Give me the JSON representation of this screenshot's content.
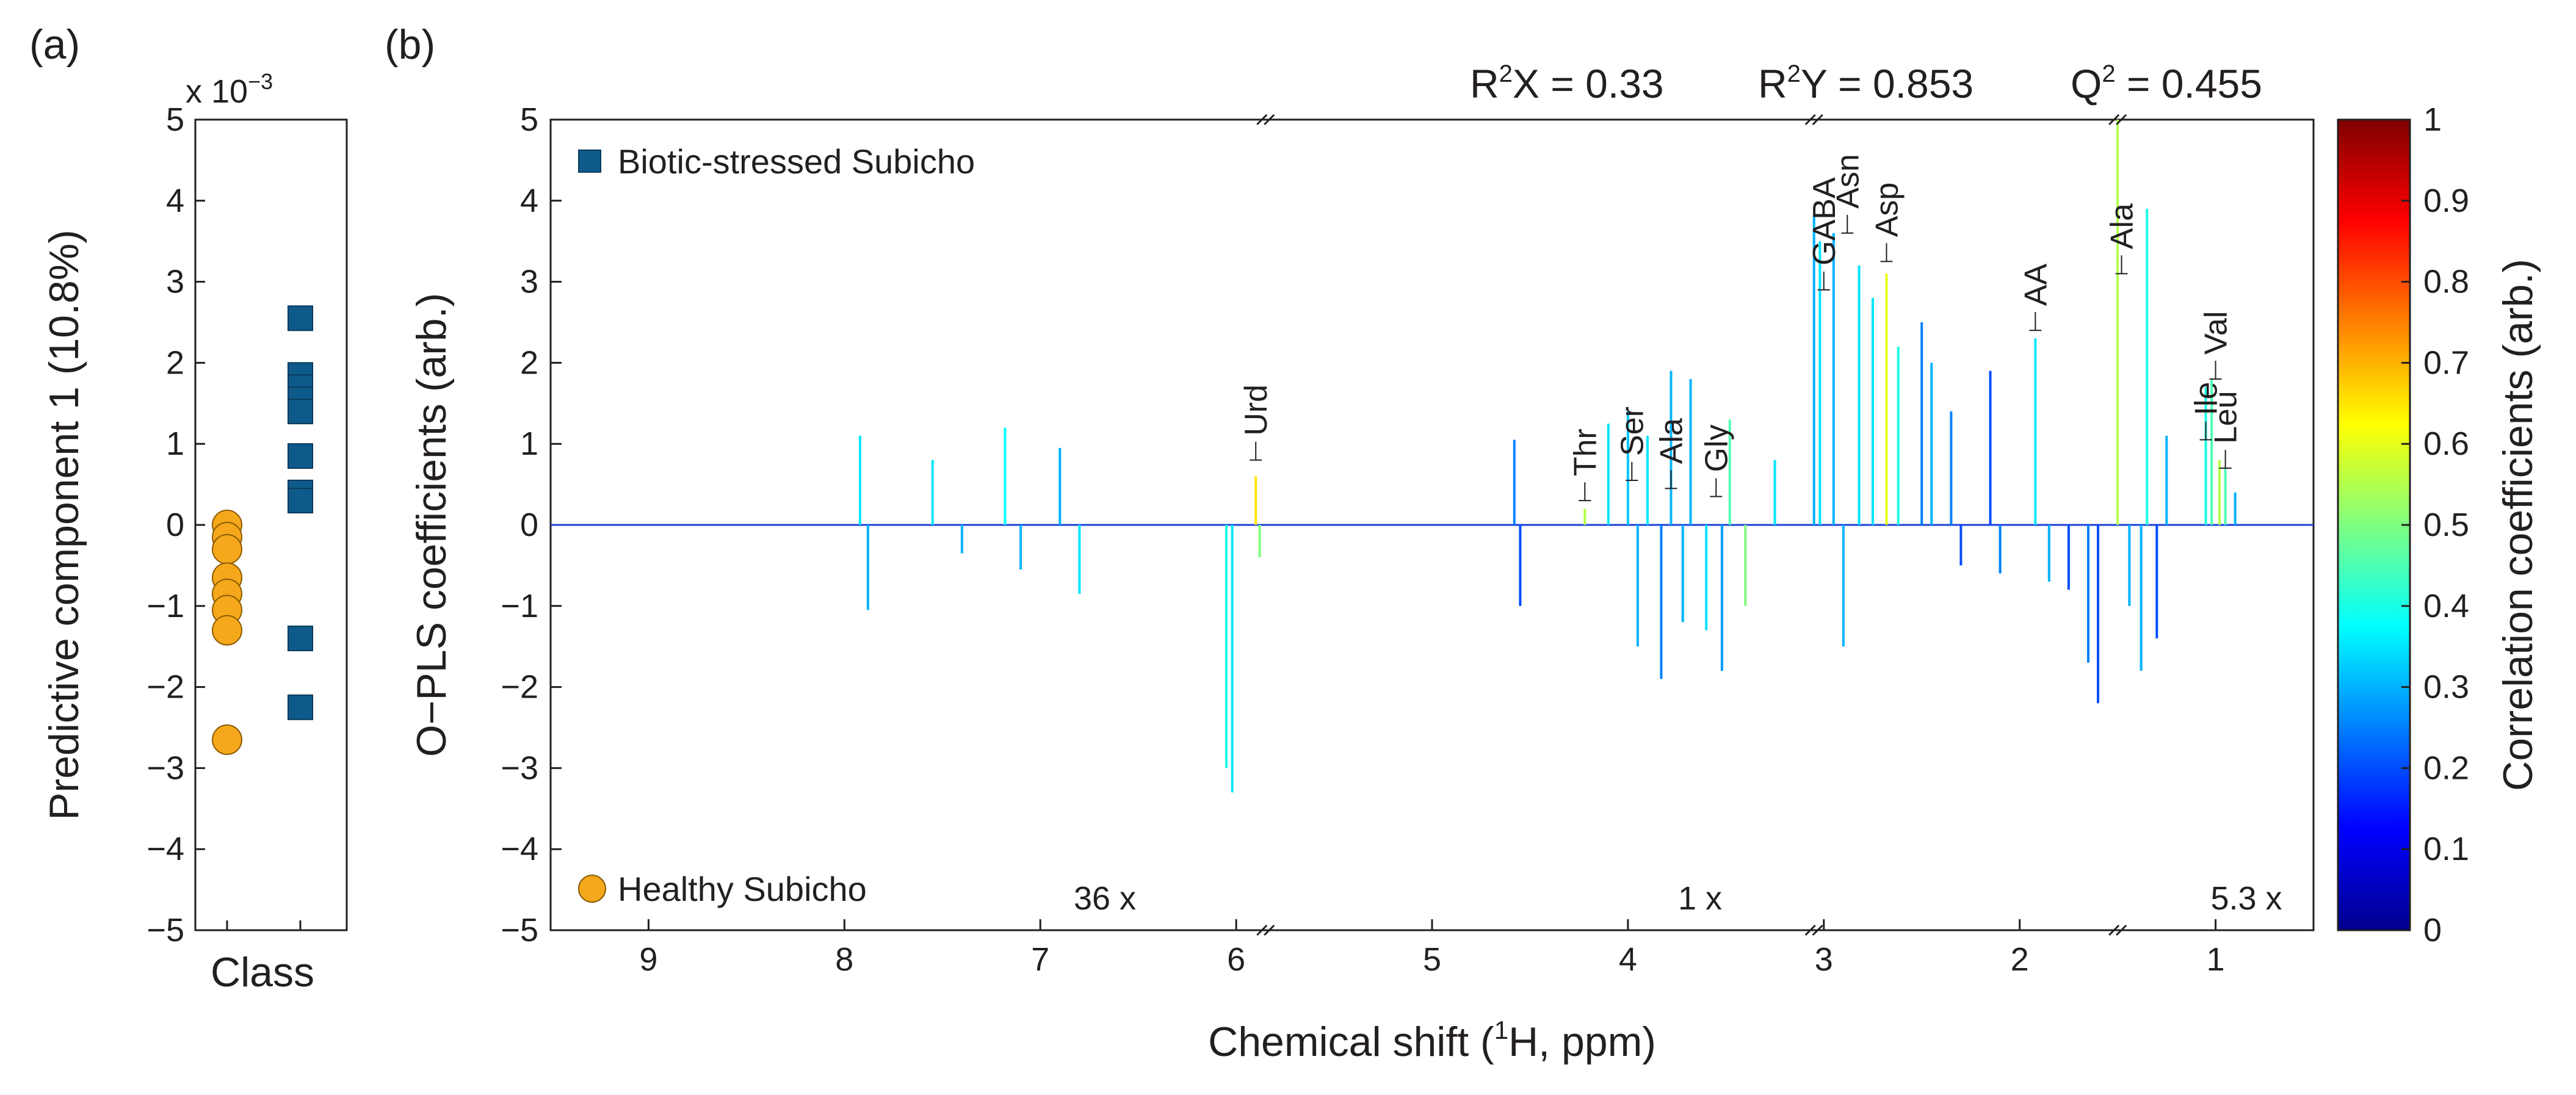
{
  "panel_a": {
    "label": "(a)",
    "exponent_label": "x 10",
    "exponent_power": "−3",
    "ylabel": "Predictive component 1 (10.8%)",
    "xlabel": "Class"
  },
  "panel_b": {
    "label": "(b)",
    "stats": {
      "r2x_prefix": "R",
      "r2x_sup": "2",
      "r2x_rest": "X = 0.33",
      "r2y_prefix": "R",
      "r2y_sup": "2",
      "r2y_rest": "Y = 0.853",
      "q2_prefix": "Q",
      "q2_sup": "2",
      "q2_rest": " = 0.455"
    },
    "ylabel": "O−PLS coefficients (arb.)",
    "xlabel_pre": "Chemical shift (",
    "xlabel_sup": "1",
    "xlabel_post": "H, ppm)",
    "legend_biotic": "Biotic-stressed Subicho",
    "legend_healthy": "Healthy Subicho",
    "scale_factors": [
      "36 x",
      "1 x",
      "5.3 x"
    ],
    "colorbar_label": "Correlation coefficients (arb.)"
  },
  "colors": {
    "healthy": "#f5a81c",
    "biotic": "#0e5a8a",
    "biotic_text": "#0e5a8a",
    "healthy_text": "#f5a81c",
    "axis": "#231f20"
  },
  "chart_data": [
    {
      "type": "scatter",
      "title": "",
      "xlabel": "Class",
      "ylabel": "Predictive component 1 (10.8%)",
      "y_scale": "x 10^-3",
      "ylim": [
        -5,
        5
      ],
      "y_ticks": [
        5,
        4,
        3,
        2,
        1,
        0,
        -1,
        -2,
        -3,
        -4,
        -5
      ],
      "series": [
        {
          "name": "Healthy Subicho",
          "marker": "circle",
          "color": "#f5a81c",
          "values": [
            0.0,
            -0.15,
            -0.3,
            -0.65,
            -0.85,
            -1.05,
            -1.3,
            -2.65
          ]
        },
        {
          "name": "Biotic-stressed Subicho",
          "marker": "square",
          "color": "#0e5a8a",
          "values": [
            2.55,
            1.85,
            1.7,
            1.55,
            1.4,
            0.85,
            0.4,
            0.3,
            -1.4,
            -2.25
          ]
        }
      ]
    },
    {
      "type": "line",
      "title": "",
      "xlabel": "Chemical shift (1H, ppm)",
      "ylabel": "O−PLS coefficients (arb.)",
      "x_reversed": true,
      "xlim": [
        9.5,
        0.5
      ],
      "ylim": [
        -5,
        5
      ],
      "x_ticks": [
        9,
        8,
        7,
        6,
        5,
        4,
        3,
        2,
        1
      ],
      "y_ticks": [
        5,
        4,
        3,
        2,
        1,
        0,
        -1,
        -2,
        -3,
        -4,
        -5
      ],
      "axis_breaks_ppm": [
        5.85,
        3.05,
        1.5
      ],
      "segments": [
        {
          "range_ppm": [
            9.5,
            5.85
          ],
          "scale": "36 x"
        },
        {
          "range_ppm": [
            5.85,
            3.05
          ],
          "scale": "1 x"
        },
        {
          "range_ppm": [
            3.05,
            0.5
          ],
          "scale": "5.3 x"
        }
      ],
      "peaks": [
        {
          "x": 7.92,
          "y": 1.1,
          "c": 0.35
        },
        {
          "x": 7.88,
          "y": -1.05,
          "c": 0.3
        },
        {
          "x": 7.55,
          "y": 0.8,
          "c": 0.35
        },
        {
          "x": 7.4,
          "y": -0.35,
          "c": 0.3
        },
        {
          "x": 7.18,
          "y": 1.2,
          "c": 0.38
        },
        {
          "x": 7.1,
          "y": -0.55,
          "c": 0.3
        },
        {
          "x": 6.9,
          "y": 0.95,
          "c": 0.3
        },
        {
          "x": 6.8,
          "y": -0.85,
          "c": 0.35
        },
        {
          "x": 6.05,
          "y": -3.0,
          "c": 0.4
        },
        {
          "x": 6.02,
          "y": -3.3,
          "c": 0.35
        },
        {
          "x": 5.9,
          "y": 0.6,
          "c": 0.65
        },
        {
          "x": 5.88,
          "y": -0.4,
          "c": 0.5
        },
        {
          "x": 4.58,
          "y": 1.05,
          "c": 0.25
        },
        {
          "x": 4.55,
          "y": -1.0,
          "c": 0.2
        },
        {
          "x": 4.22,
          "y": 0.2,
          "c": 0.55
        },
        {
          "x": 4.1,
          "y": 1.25,
          "c": 0.35
        },
        {
          "x": 4.0,
          "y": 1.4,
          "c": 0.32
        },
        {
          "x": 3.95,
          "y": -1.5,
          "c": 0.3
        },
        {
          "x": 3.9,
          "y": 1.1,
          "c": 0.35
        },
        {
          "x": 3.83,
          "y": -1.9,
          "c": 0.25
        },
        {
          "x": 3.78,
          "y": 1.9,
          "c": 0.3
        },
        {
          "x": 3.72,
          "y": -1.2,
          "c": 0.3
        },
        {
          "x": 3.68,
          "y": 1.8,
          "c": 0.3
        },
        {
          "x": 3.6,
          "y": -1.3,
          "c": 0.35
        },
        {
          "x": 3.52,
          "y": -1.8,
          "c": 0.28
        },
        {
          "x": 3.48,
          "y": 1.3,
          "c": 0.45
        },
        {
          "x": 3.4,
          "y": -1.0,
          "c": 0.5
        },
        {
          "x": 3.25,
          "y": 0.8,
          "c": 0.35
        },
        {
          "x": 3.05,
          "y": 3.8,
          "c": 0.3
        },
        {
          "x": 3.02,
          "y": 3.5,
          "c": 0.35
        },
        {
          "x": 2.95,
          "y": 3.6,
          "c": 0.3
        },
        {
          "x": 2.9,
          "y": -1.5,
          "c": 0.3
        },
        {
          "x": 2.82,
          "y": 3.2,
          "c": 0.35
        },
        {
          "x": 2.75,
          "y": 2.8,
          "c": 0.35
        },
        {
          "x": 2.68,
          "y": 3.1,
          "c": 0.6
        },
        {
          "x": 2.62,
          "y": 2.2,
          "c": 0.4
        },
        {
          "x": 2.5,
          "y": 2.5,
          "c": 0.25
        },
        {
          "x": 2.45,
          "y": 2.0,
          "c": 0.3
        },
        {
          "x": 2.35,
          "y": 1.4,
          "c": 0.25
        },
        {
          "x": 2.3,
          "y": -0.5,
          "c": 0.2
        },
        {
          "x": 2.15,
          "y": 1.9,
          "c": 0.2
        },
        {
          "x": 2.1,
          "y": -0.6,
          "c": 0.25
        },
        {
          "x": 1.92,
          "y": 2.3,
          "c": 0.35
        },
        {
          "x": 1.85,
          "y": -0.7,
          "c": 0.3
        },
        {
          "x": 1.75,
          "y": -0.8,
          "c": 0.2
        },
        {
          "x": 1.65,
          "y": -1.7,
          "c": 0.25
        },
        {
          "x": 1.6,
          "y": -2.2,
          "c": 0.2
        },
        {
          "x": 1.5,
          "y": 5.0,
          "c": 0.55
        },
        {
          "x": 1.44,
          "y": -1.0,
          "c": 0.3
        },
        {
          "x": 1.38,
          "y": -1.8,
          "c": 0.3
        },
        {
          "x": 1.35,
          "y": 3.9,
          "c": 0.4
        },
        {
          "x": 1.3,
          "y": -1.4,
          "c": 0.2
        },
        {
          "x": 1.25,
          "y": 1.1,
          "c": 0.3
        },
        {
          "x": 1.05,
          "y": 1.7,
          "c": 0.4
        },
        {
          "x": 1.02,
          "y": 1.8,
          "c": 0.45
        },
        {
          "x": 0.98,
          "y": 0.8,
          "c": 0.55
        },
        {
          "x": 0.95,
          "y": 0.7,
          "c": 0.45
        },
        {
          "x": 0.9,
          "y": 0.4,
          "c": 0.3
        }
      ],
      "annotations": [
        {
          "label": "Urd",
          "x": 5.9,
          "y": 0.8
        },
        {
          "label": "Thr",
          "x": 4.22,
          "y": 0.3
        },
        {
          "label": "Ser",
          "x": 3.98,
          "y": 0.55
        },
        {
          "label": "Ala",
          "x": 3.78,
          "y": 0.45
        },
        {
          "label": "Gly",
          "x": 3.55,
          "y": 0.35
        },
        {
          "label": "GABA",
          "x": 3.0,
          "y": 2.9
        },
        {
          "label": "Asn",
          "x": 2.88,
          "y": 3.6
        },
        {
          "label": "Asp",
          "x": 2.68,
          "y": 3.25
        },
        {
          "label": "AA",
          "x": 1.92,
          "y": 2.4
        },
        {
          "label": "Ala",
          "x": 1.48,
          "y": 3.1
        },
        {
          "label": "Ile",
          "x": 1.05,
          "y": 1.05
        },
        {
          "label": "Val",
          "x": 1.0,
          "y": 1.8
        },
        {
          "label": "Leu",
          "x": 0.95,
          "y": 0.7
        }
      ]
    },
    {
      "type": "heatmap",
      "title": "",
      "ylabel": "Correlation coefficients (arb.)",
      "colormap": "jet",
      "ylim": [
        0,
        1
      ],
      "y_ticks": [
        1,
        0.9,
        0.8,
        0.7,
        0.6,
        0.5,
        0.4,
        0.3,
        0.2,
        0.1,
        0
      ]
    }
  ]
}
